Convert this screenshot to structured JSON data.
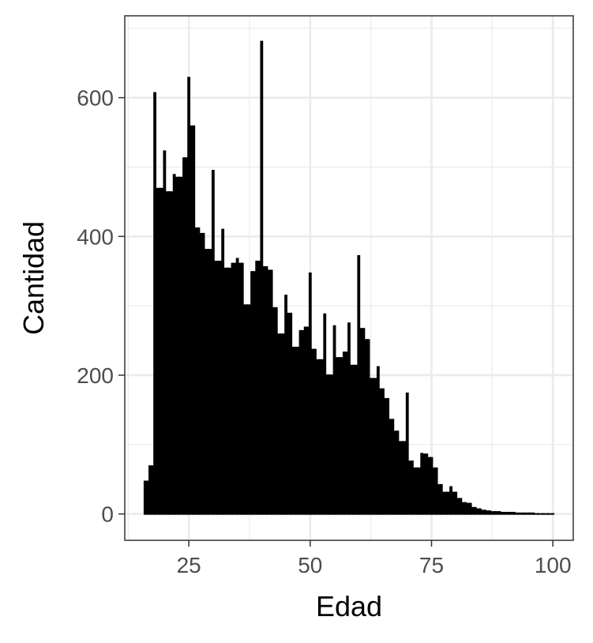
{
  "chart_data": {
    "type": "bar",
    "title": "",
    "xlabel": "Edad",
    "ylabel": "Cantidad",
    "xlim": [
      11.8,
      104.2
    ],
    "ylim": [
      -38,
      718
    ],
    "x_ticks": [
      25,
      50,
      75,
      100
    ],
    "y_ticks": [
      0,
      200,
      400,
      600
    ],
    "x_minor": [
      12.5,
      37.5,
      62.5,
      87.5
    ],
    "y_minor": [
      100,
      300,
      500,
      700
    ],
    "grid": true,
    "bar_color": "#000000",
    "x": [
      16,
      17,
      18,
      19,
      20,
      21,
      22,
      23,
      24,
      25,
      26,
      27,
      28,
      29,
      30,
      31,
      32,
      33,
      34,
      35,
      36,
      37,
      38,
      39,
      40,
      41,
      42,
      43,
      44,
      45,
      46,
      47,
      48,
      49,
      50,
      51,
      52,
      53,
      54,
      55,
      56,
      57,
      58,
      59,
      60,
      61,
      62,
      63,
      64,
      65,
      66,
      67,
      68,
      69,
      70,
      71,
      72,
      73,
      74,
      75,
      76,
      77,
      78,
      79,
      80,
      81,
      82,
      83,
      84,
      85,
      86,
      87,
      88,
      89,
      90,
      91,
      92,
      93,
      94,
      95,
      96,
      97,
      98,
      99,
      100
    ],
    "values": [
      48,
      70,
      608,
      470,
      524,
      465,
      490,
      486,
      514,
      630,
      560,
      413,
      405,
      382,
      496,
      365,
      411,
      355,
      362,
      369,
      362,
      302,
      350,
      365,
      682,
      357,
      352,
      298,
      260,
      316,
      290,
      241,
      265,
      270,
      348,
      238,
      223,
      289,
      201,
      272,
      226,
      234,
      276,
      215,
      373,
      268,
      252,
      196,
      213,
      181,
      167,
      137,
      120,
      105,
      175,
      77,
      67,
      88,
      87,
      82,
      67,
      43,
      32,
      40,
      32,
      23,
      17,
      16,
      10,
      8,
      6,
      5,
      4,
      4,
      3,
      3,
      3,
      2,
      2,
      2,
      2,
      1,
      1,
      1,
      1
    ]
  }
}
